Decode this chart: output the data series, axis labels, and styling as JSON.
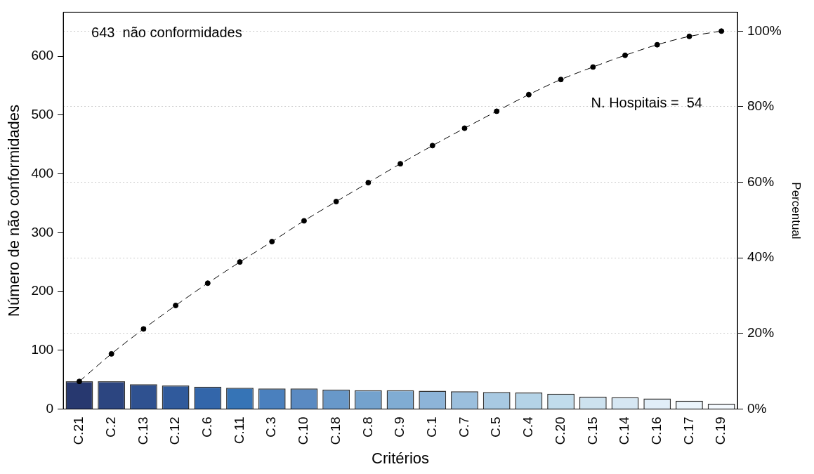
{
  "chart_data": {
    "type": "bar",
    "xlabel": "Critérios",
    "ylabel": "Número de não conformidades",
    "y2label": "Percentual",
    "categories": [
      "C.21",
      "C.2",
      "C.13",
      "C.12",
      "C.6",
      "C.11",
      "C.3",
      "C.10",
      "C.18",
      "C.8",
      "C.9",
      "C.1",
      "C.7",
      "C.5",
      "C.4",
      "C.20",
      "C.15",
      "C.14",
      "C.16",
      "C.17",
      "C.19"
    ],
    "series": [
      {
        "colors": [
          "#27386f",
          "#2c4580",
          "#2f5190",
          "#305a9c",
          "#3366aa",
          "#3674b6",
          "#4a80be",
          "#5a8ac2",
          "#6898c9",
          "#74a2cd",
          "#80acd3",
          "#8db4d8",
          "#9bbfdd",
          "#a8c9e2",
          "#b4d3e7",
          "#c1dcec",
          "#cde2ef",
          "#d6e7f3",
          "#e1eef8",
          "#ebf4fb",
          "#f5faff"
        ],
        "values": [
          47,
          47,
          42,
          40,
          38,
          36,
          35,
          35,
          33,
          32,
          32,
          31,
          30,
          29,
          28,
          26,
          21,
          20,
          18,
          14,
          9
        ]
      },
      {
        "type": "line",
        "axis": "y2",
        "color": "#000000",
        "marker": "circle",
        "line_style": "dashed",
        "values": [
          7.3,
          14.6,
          21.2,
          27.4,
          33.3,
          38.9,
          44.3,
          49.8,
          54.9,
          59.9,
          64.9,
          69.7,
          74.3,
          78.8,
          83.2,
          87.2,
          90.5,
          93.6,
          96.4,
          98.6,
          100
        ]
      }
    ],
    "ylim": [
      0,
      675
    ],
    "yticks": [
      0,
      100,
      200,
      300,
      400,
      500,
      600
    ],
    "y2lim": [
      0,
      105
    ],
    "y2ticks": [
      {
        "value": 0,
        "label": "0%"
      },
      {
        "value": 20,
        "label": "20%"
      },
      {
        "value": 40,
        "label": "40%"
      },
      {
        "value": 60,
        "label": "60%"
      },
      {
        "value": 80,
        "label": "80%"
      },
      {
        "value": 100,
        "label": "100%"
      }
    ],
    "grid": "y",
    "legend": false,
    "annotations": [
      "643  não conformidades",
      "N. Hospitais =  54"
    ]
  }
}
